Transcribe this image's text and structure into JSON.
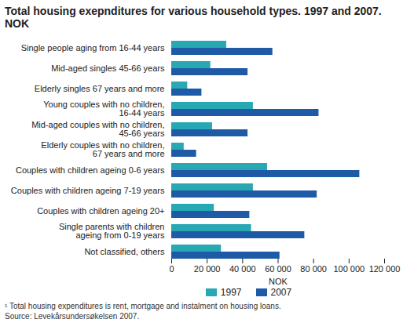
{
  "chart_data": {
    "type": "bar",
    "orientation": "horizontal",
    "title": "Total housing exepnditures for various household types. 1997 and 2007. NOK",
    "x_label": "NOK",
    "categories": [
      "Single people aging from 16-44 years",
      "Mid-aged singles 45-66 years",
      "Elderly singles 67 years and more",
      "Young couples with no children,\n16-44 years",
      "Mid-aged couples with no children,\n45-66 years",
      "Elderly couples with no children,\n67 years and more",
      "Couples with children ageing 0-6 years",
      "Couples with children ageing 7-19 years",
      "Couples with children ageing 20+",
      "Single parents with children\nageing from 0-19 years",
      "Not classified, others"
    ],
    "series": [
      {
        "name": "1997",
        "color": "#27a8b3",
        "values": [
          31000,
          22000,
          9000,
          46000,
          23000,
          7000,
          54000,
          46000,
          24000,
          45000,
          28000
        ]
      },
      {
        "name": "2007",
        "color": "#1f5aa6",
        "values": [
          57000,
          43000,
          17000,
          83000,
          43000,
          14000,
          106000,
          82000,
          44000,
          75000,
          61000
        ]
      }
    ],
    "xlim": [
      0,
      120000
    ],
    "xticks": [
      0,
      {
        "value": 20000,
        "label": "20 000"
      },
      {
        "value": 40000,
        "label": "40 000"
      },
      {
        "value": 60000,
        "label": "60 000"
      },
      {
        "value": 80000,
        "label": "80 000"
      },
      {
        "value": 100000,
        "label": "100 000"
      },
      {
        "value": 120000,
        "label": "120 000"
      }
    ],
    "grid": false,
    "legend": "bottom",
    "notes": [
      "¹ Total housing expenditures is rent, mortgage and instalment on housing loans.",
      "Source: Levekårsundersøkelsen 2007."
    ]
  }
}
